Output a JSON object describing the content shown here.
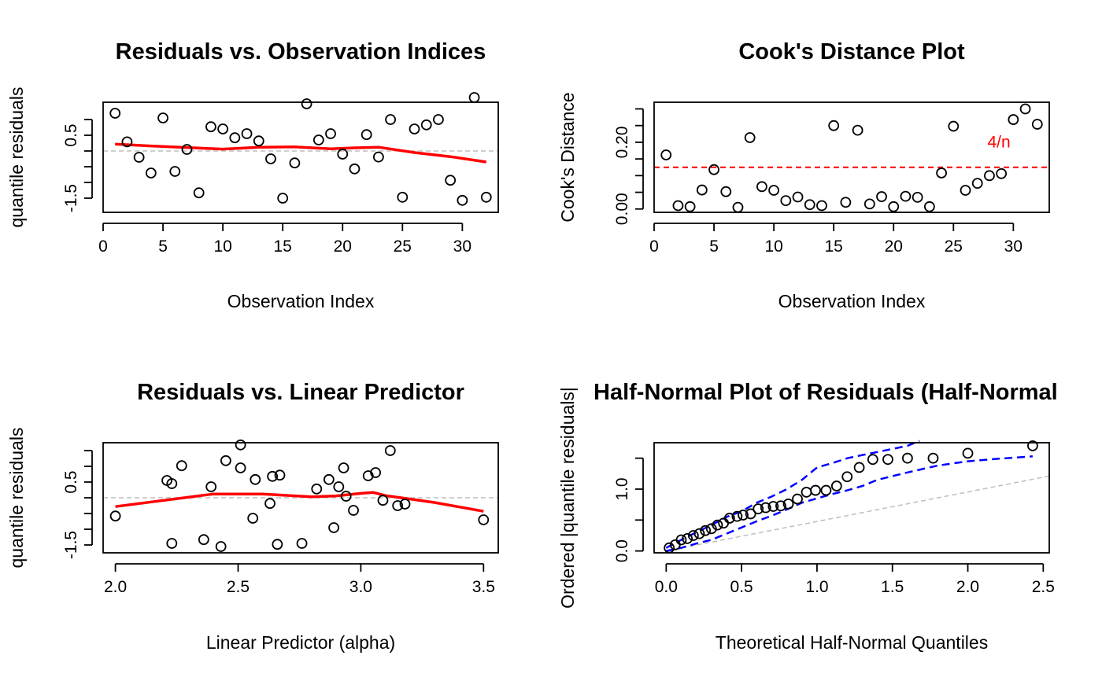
{
  "colors": {
    "smooth": "#ff0000",
    "reference": "#bebebe",
    "threshold": "#ff0000",
    "envelope": "#0000ff",
    "points": "#000000"
  },
  "chart_data": [
    {
      "id": "residuals-vs-index",
      "type": "scatter",
      "title": "Residuals vs. Observation Indices",
      "xlabel": "Observation Index",
      "ylabel": "quantile residuals",
      "xlim": [
        0,
        33
      ],
      "ylim": [
        -1.95,
        1.55
      ],
      "xticks": [
        0,
        5,
        10,
        15,
        20,
        25,
        30
      ],
      "xtick_labels": [
        "0",
        "5",
        "10",
        "15",
        "20",
        "25",
        "30"
      ],
      "yticks": [
        -1.5,
        -1.0,
        -0.5,
        0.0,
        0.5,
        1.0
      ],
      "ytick_labels": [
        "-1.5",
        "",
        "",
        "",
        "0.5",
        ""
      ],
      "reference_lines": [
        {
          "y": 0.0,
          "color": "#bebebe",
          "style": "dashed"
        }
      ],
      "points": {
        "x": [
          1,
          2,
          3,
          4,
          5,
          6,
          7,
          8,
          9,
          10,
          11,
          12,
          13,
          14,
          15,
          16,
          17,
          18,
          19,
          20,
          21,
          22,
          23,
          24,
          25,
          26,
          27,
          28,
          29,
          30,
          31,
          32
        ],
        "y": [
          1.2,
          0.29,
          -0.2,
          -0.7,
          1.05,
          -0.65,
          0.05,
          -1.33,
          0.77,
          0.7,
          0.42,
          0.55,
          0.32,
          -0.25,
          -1.5,
          -0.38,
          1.5,
          0.35,
          0.55,
          -0.1,
          -0.57,
          0.52,
          -0.19,
          1.0,
          -1.47,
          0.7,
          0.83,
          1.0,
          -0.93,
          -1.57,
          1.7,
          -1.47
        ]
      },
      "smooth_line": {
        "x": [
          1,
          4,
          7,
          10,
          13,
          16,
          19,
          21,
          23,
          26,
          29,
          32
        ],
        "y": [
          0.22,
          0.16,
          0.11,
          0.06,
          0.12,
          0.13,
          0.07,
          0.1,
          0.12,
          -0.05,
          -0.18,
          -0.35
        ]
      }
    },
    {
      "id": "cooks-distance",
      "type": "scatter",
      "title": "Cook's Distance Plot",
      "xlabel": "Observation Index",
      "ylabel": "Cook's Distance",
      "xlim": [
        0,
        33
      ],
      "ylim": [
        -0.01,
        0.32
      ],
      "xticks": [
        0,
        5,
        10,
        15,
        20,
        25,
        30
      ],
      "xtick_labels": [
        "0",
        "5",
        "10",
        "15",
        "20",
        "25",
        "30"
      ],
      "yticks": [
        0.0,
        0.05,
        0.1,
        0.15,
        0.2,
        0.25,
        0.3
      ],
      "ytick_labels": [
        "0.00",
        "",
        "",
        "",
        "0.20",
        "",
        ""
      ],
      "threshold": {
        "y": 0.125,
        "label": "4/n",
        "color": "#ff0000",
        "style": "dashed",
        "label_x": 28.8,
        "label_y": 0.185
      },
      "points": {
        "x": [
          1,
          2,
          3,
          4,
          5,
          6,
          7,
          8,
          9,
          10,
          11,
          12,
          13,
          14,
          15,
          16,
          17,
          18,
          19,
          20,
          21,
          22,
          23,
          24,
          25,
          26,
          27,
          28,
          29,
          30,
          31,
          32
        ],
        "y": [
          0.162,
          0.01,
          0.007,
          0.057,
          0.118,
          0.052,
          0.005,
          0.214,
          0.067,
          0.056,
          0.025,
          0.036,
          0.013,
          0.01,
          0.25,
          0.02,
          0.236,
          0.015,
          0.037,
          0.007,
          0.038,
          0.035,
          0.007,
          0.108,
          0.248,
          0.056,
          0.077,
          0.1,
          0.106,
          0.268,
          0.3,
          0.254
        ]
      }
    },
    {
      "id": "residuals-vs-predictor",
      "type": "scatter",
      "title": "Residuals vs. Linear Predictor",
      "xlabel": "Linear Predictor (alpha)",
      "ylabel": "quantile residuals",
      "xlim": [
        1.95,
        3.56
      ],
      "ylim": [
        -1.75,
        1.75
      ],
      "xticks": [
        2.0,
        2.5,
        3.0,
        3.5
      ],
      "xtick_labels": [
        "2.0",
        "2.5",
        "3.0",
        "3.5"
      ],
      "yticks": [
        -1.5,
        -1.0,
        -0.5,
        0.0,
        0.5,
        1.0,
        1.5
      ],
      "ytick_labels": [
        "-1.5",
        "",
        "",
        "",
        "0.5",
        "",
        ""
      ],
      "reference_lines": [
        {
          "y": 0.0,
          "color": "#bebebe",
          "style": "dashed"
        }
      ],
      "points": {
        "x": [
          2.0,
          2.21,
          2.23,
          2.23,
          2.27,
          2.36,
          2.39,
          2.43,
          2.45,
          2.51,
          2.51,
          2.56,
          2.57,
          2.63,
          2.64,
          2.66,
          2.67,
          2.76,
          2.82,
          2.87,
          2.89,
          2.91,
          2.93,
          2.94,
          2.97,
          3.03,
          3.06,
          3.09,
          3.12,
          3.15,
          3.18,
          3.5
        ],
        "y": [
          -0.58,
          0.55,
          0.45,
          -1.45,
          1.02,
          -1.33,
          0.35,
          -1.55,
          1.18,
          0.95,
          1.68,
          -0.65,
          0.58,
          -0.18,
          0.68,
          -1.48,
          0.72,
          -1.45,
          0.28,
          0.58,
          -0.95,
          0.35,
          0.95,
          0.05,
          -0.4,
          0.7,
          0.8,
          -0.08,
          1.5,
          -0.25,
          -0.2,
          -0.7
        ]
      },
      "smooth_line": {
        "x": [
          2.0,
          2.2,
          2.4,
          2.6,
          2.8,
          2.9,
          3.0,
          3.05,
          3.1,
          3.3,
          3.5
        ],
        "y": [
          -0.28,
          -0.08,
          0.12,
          0.12,
          0.03,
          0.06,
          0.14,
          0.17,
          0.07,
          -0.15,
          -0.43
        ]
      }
    },
    {
      "id": "half-normal-plot",
      "type": "scatter",
      "title": "Half-Normal Plot of Residuals (Half-Normal",
      "xlabel": "Theoretical Half-Normal Quantiles",
      "ylabel": "Ordered |quantile residuals|",
      "xlim": [
        -0.08,
        2.54
      ],
      "ylim": [
        -0.03,
        1.75
      ],
      "xticks": [
        0.0,
        0.5,
        1.0,
        1.5,
        2.0,
        2.5
      ],
      "xtick_labels": [
        "0.0",
        "0.5",
        "1.0",
        "1.5",
        "2.0",
        "2.5"
      ],
      "yticks": [
        0.0,
        0.5,
        1.0,
        1.5
      ],
      "ytick_labels": [
        "0.0",
        "",
        "1.0",
        ""
      ],
      "reference_lines": [
        {
          "from": [
            0,
            0
          ],
          "to": [
            2.6,
            1.24
          ],
          "color": "#bebebe",
          "style": "dashed"
        }
      ],
      "points": {
        "x": [
          0.02,
          0.06,
          0.1,
          0.14,
          0.18,
          0.22,
          0.26,
          0.3,
          0.34,
          0.38,
          0.42,
          0.47,
          0.51,
          0.56,
          0.61,
          0.66,
          0.71,
          0.76,
          0.81,
          0.87,
          0.93,
          0.99,
          1.06,
          1.13,
          1.2,
          1.28,
          1.37,
          1.47,
          1.6,
          1.77,
          2.0,
          2.43
        ],
        "y": [
          0.05,
          0.1,
          0.18,
          0.2,
          0.25,
          0.28,
          0.33,
          0.36,
          0.42,
          0.45,
          0.53,
          0.56,
          0.58,
          0.6,
          0.68,
          0.7,
          0.72,
          0.73,
          0.76,
          0.84,
          0.95,
          0.98,
          0.98,
          1.05,
          1.2,
          1.35,
          1.48,
          1.48,
          1.5,
          1.5,
          1.58,
          1.7
        ]
      },
      "envelope_upper": {
        "x": [
          0.0,
          0.1,
          0.2,
          0.3,
          0.4,
          0.5,
          0.6,
          0.7,
          0.8,
          0.9,
          1.0,
          1.1,
          1.2,
          1.3,
          1.4,
          1.5,
          1.6,
          1.68
        ],
        "y": [
          0.05,
          0.18,
          0.3,
          0.42,
          0.55,
          0.64,
          0.78,
          0.88,
          1.0,
          1.15,
          1.35,
          1.42,
          1.5,
          1.55,
          1.6,
          1.65,
          1.7,
          1.78
        ]
      },
      "envelope_lower": {
        "x": [
          0.0,
          0.1,
          0.2,
          0.3,
          0.4,
          0.5,
          0.6,
          0.7,
          0.8,
          0.9,
          1.0,
          1.1,
          1.2,
          1.3,
          1.4,
          1.6,
          1.8,
          2.0,
          2.2,
          2.43
        ],
        "y": [
          0.0,
          0.05,
          0.12,
          0.18,
          0.28,
          0.38,
          0.48,
          0.57,
          0.67,
          0.78,
          0.85,
          0.92,
          0.98,
          1.05,
          1.15,
          1.27,
          1.38,
          1.45,
          1.49,
          1.53
        ]
      }
    }
  ]
}
